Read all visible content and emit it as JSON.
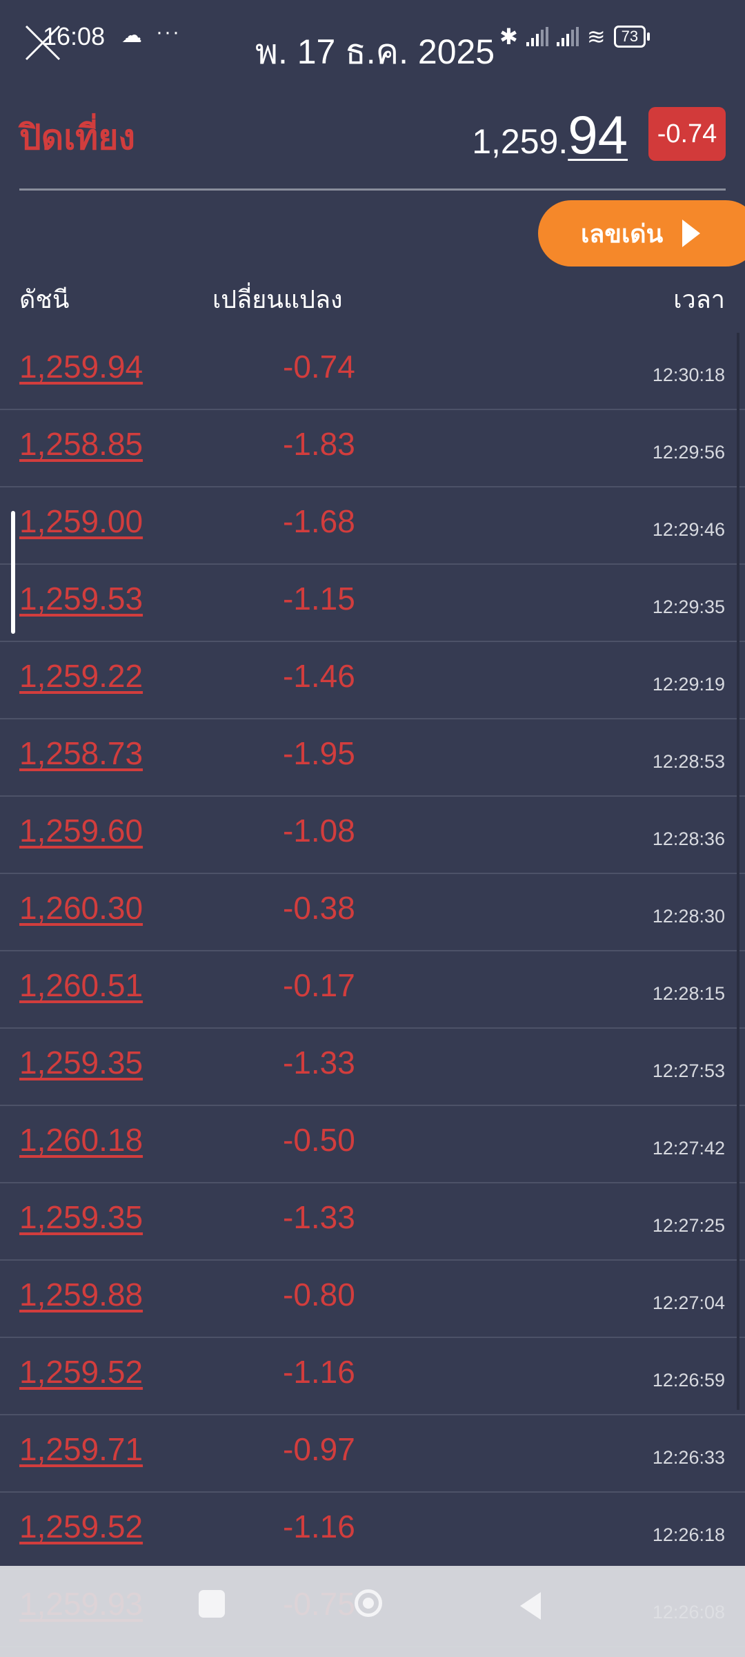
{
  "status_bar": {
    "time": "16:08",
    "date": "พ. 17 ธ.ค. 2025",
    "battery": "73"
  },
  "header": {
    "title": "ปิดเที่ยง",
    "price_main": "1,259.",
    "price_decimal": "94",
    "change": "-0.74"
  },
  "hot_button": {
    "label": "เลขเด่น"
  },
  "columns": {
    "index": "ดัชนี",
    "change": "เปลี่ยนแปลง",
    "time": "เวลา"
  },
  "colors": {
    "background": "#363b52",
    "negative": "#d23d3d",
    "accent": "#f5882a"
  },
  "rows": [
    {
      "value": "1,259.94",
      "change": "-0.74",
      "time": "12:30:18"
    },
    {
      "value": "1,258.85",
      "change": "-1.83",
      "time": "12:29:56"
    },
    {
      "value": "1,259.00",
      "change": "-1.68",
      "time": "12:29:46"
    },
    {
      "value": "1,259.53",
      "change": "-1.15",
      "time": "12:29:35"
    },
    {
      "value": "1,259.22",
      "change": "-1.46",
      "time": "12:29:19"
    },
    {
      "value": "1,258.73",
      "change": "-1.95",
      "time": "12:28:53"
    },
    {
      "value": "1,259.60",
      "change": "-1.08",
      "time": "12:28:36"
    },
    {
      "value": "1,260.30",
      "change": "-0.38",
      "time": "12:28:30"
    },
    {
      "value": "1,260.51",
      "change": "-0.17",
      "time": "12:28:15"
    },
    {
      "value": "1,259.35",
      "change": "-1.33",
      "time": "12:27:53"
    },
    {
      "value": "1,260.18",
      "change": "-0.50",
      "time": "12:27:42"
    },
    {
      "value": "1,259.35",
      "change": "-1.33",
      "time": "12:27:25"
    },
    {
      "value": "1,259.88",
      "change": "-0.80",
      "time": "12:27:04"
    },
    {
      "value": "1,259.52",
      "change": "-1.16",
      "time": "12:26:59"
    },
    {
      "value": "1,259.71",
      "change": "-0.97",
      "time": "12:26:33"
    },
    {
      "value": "1,259.52",
      "change": "-1.16",
      "time": "12:26:18"
    },
    {
      "value": "1,259.93",
      "change": "-0.75",
      "time": "12:26:08"
    }
  ]
}
